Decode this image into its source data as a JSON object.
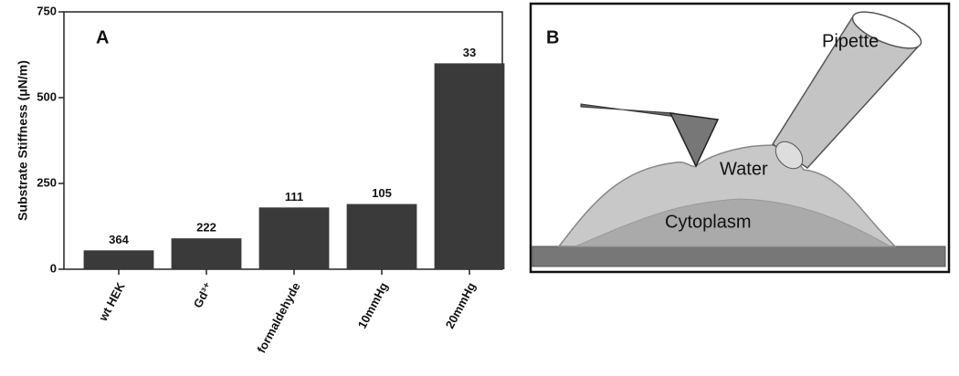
{
  "chart_data": {
    "type": "bar",
    "panel_label": "A",
    "ylabel": "Substrate Stiffness (μN/m)",
    "categories": [
      "wt HEK",
      "Gd³⁺",
      "formaldehyde",
      "10mmHg",
      "20mmHg"
    ],
    "values": [
      55,
      90,
      180,
      190,
      600
    ],
    "annotations": [
      "364",
      "222",
      "111",
      "105",
      "33"
    ],
    "color": "#3a3a3a",
    "ylim": [
      0,
      750
    ],
    "yticks": [
      0,
      250,
      500,
      750
    ]
  },
  "diagram": {
    "panel_label": "B",
    "labels": [
      "Pipette",
      "Water",
      "Cytoplasm"
    ]
  }
}
